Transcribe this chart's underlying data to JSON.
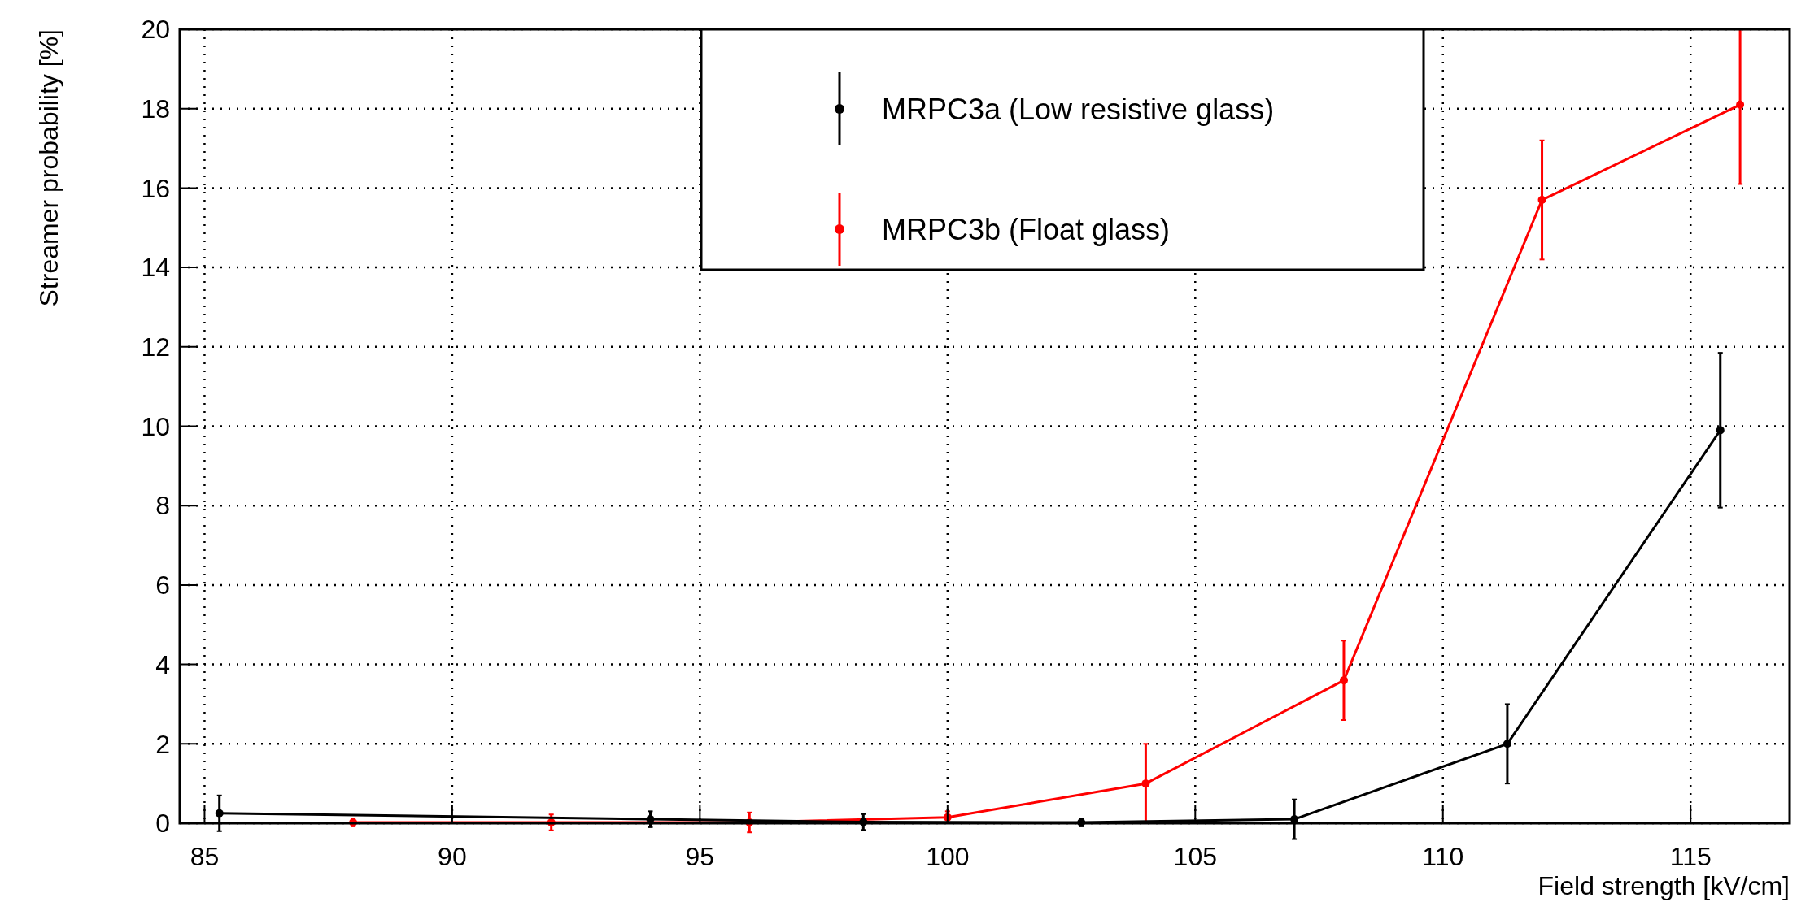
{
  "chart_data": {
    "type": "line",
    "xlabel": "Field strength [kV/cm]",
    "ylabel": "Streamer probability [%]",
    "xlim": [
      84.5,
      117
    ],
    "xticks": [
      85,
      90,
      95,
      100,
      105,
      110,
      115
    ],
    "ylim": [
      0,
      20
    ],
    "yticks": [
      0,
      2,
      4,
      6,
      8,
      10,
      12,
      14,
      16,
      18,
      20
    ],
    "grid": true,
    "legend": "top",
    "marker": "circle",
    "line_style": "solid",
    "series": [
      {
        "name": "MRPC3a (Low resistive glass)",
        "color": "#000000",
        "x": [
          85.3,
          94,
          98.3,
          102.7,
          107,
          111.3,
          115.6
        ],
        "values": [
          0.25,
          0.1,
          0.03,
          0.02,
          0.1,
          2.0,
          9.9
        ],
        "errors": [
          0.45,
          0.2,
          0.2,
          0.1,
          0.5,
          1.0,
          1.95
        ]
      },
      {
        "name": "MRPC3b (Float glass)",
        "color": "#ff0000",
        "x": [
          88,
          92,
          96,
          100,
          104,
          108,
          112,
          116
        ],
        "values": [
          0.02,
          0.02,
          0.02,
          0.15,
          1.0,
          3.6,
          15.7,
          18.1
        ],
        "errors": [
          0.1,
          0.2,
          0.25,
          0.15,
          1.0,
          1.0,
          1.5,
          [
            16.1,
            20
          ]
        ]
      }
    ]
  }
}
